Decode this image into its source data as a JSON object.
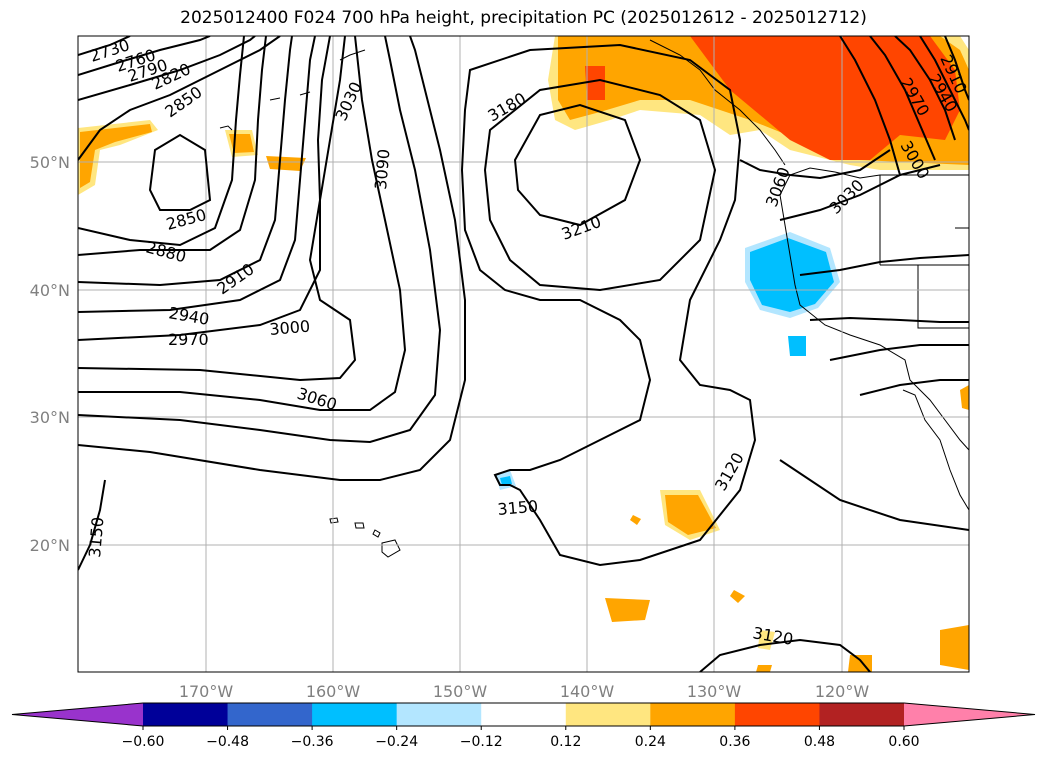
{
  "title": "2025012400 F024 700 hPa height, precipitation PC (2025012612 - 2025012712)",
  "map": {
    "lat_labels": [
      "50°N",
      "40°N",
      "30°N",
      "20°N"
    ],
    "lon_labels": [
      "170°W",
      "160°W",
      "150°W",
      "140°W",
      "130°W",
      "120°W"
    ],
    "contour_labels": [
      "2730",
      "2760",
      "2790",
      "2820",
      "2850",
      "2850",
      "2880",
      "2910",
      "2940",
      "2970",
      "3000",
      "3030",
      "3060",
      "3090",
      "3180",
      "3210",
      "3150",
      "3150",
      "3120",
      "3120",
      "2910",
      "2940",
      "2970",
      "3000",
      "3030",
      "3060"
    ]
  },
  "colorbar": {
    "ticks": [
      "−0.60",
      "−0.48",
      "−0.36",
      "−0.24",
      "−0.12",
      "0.12",
      "0.24",
      "0.36",
      "0.48",
      "0.60"
    ],
    "colors": [
      "#9933cc",
      "#000099",
      "#3366cc",
      "#00bfff",
      "#b3e6ff",
      "#ffffff",
      "#ffe680",
      "#ffa500",
      "#ff4500",
      "#b22222",
      "#ff80aa"
    ]
  },
  "colors": {
    "orange": "#ffa500",
    "red_orange": "#ff4500",
    "light_yellow": "#ffe680",
    "cyan": "#00bfff"
  }
}
